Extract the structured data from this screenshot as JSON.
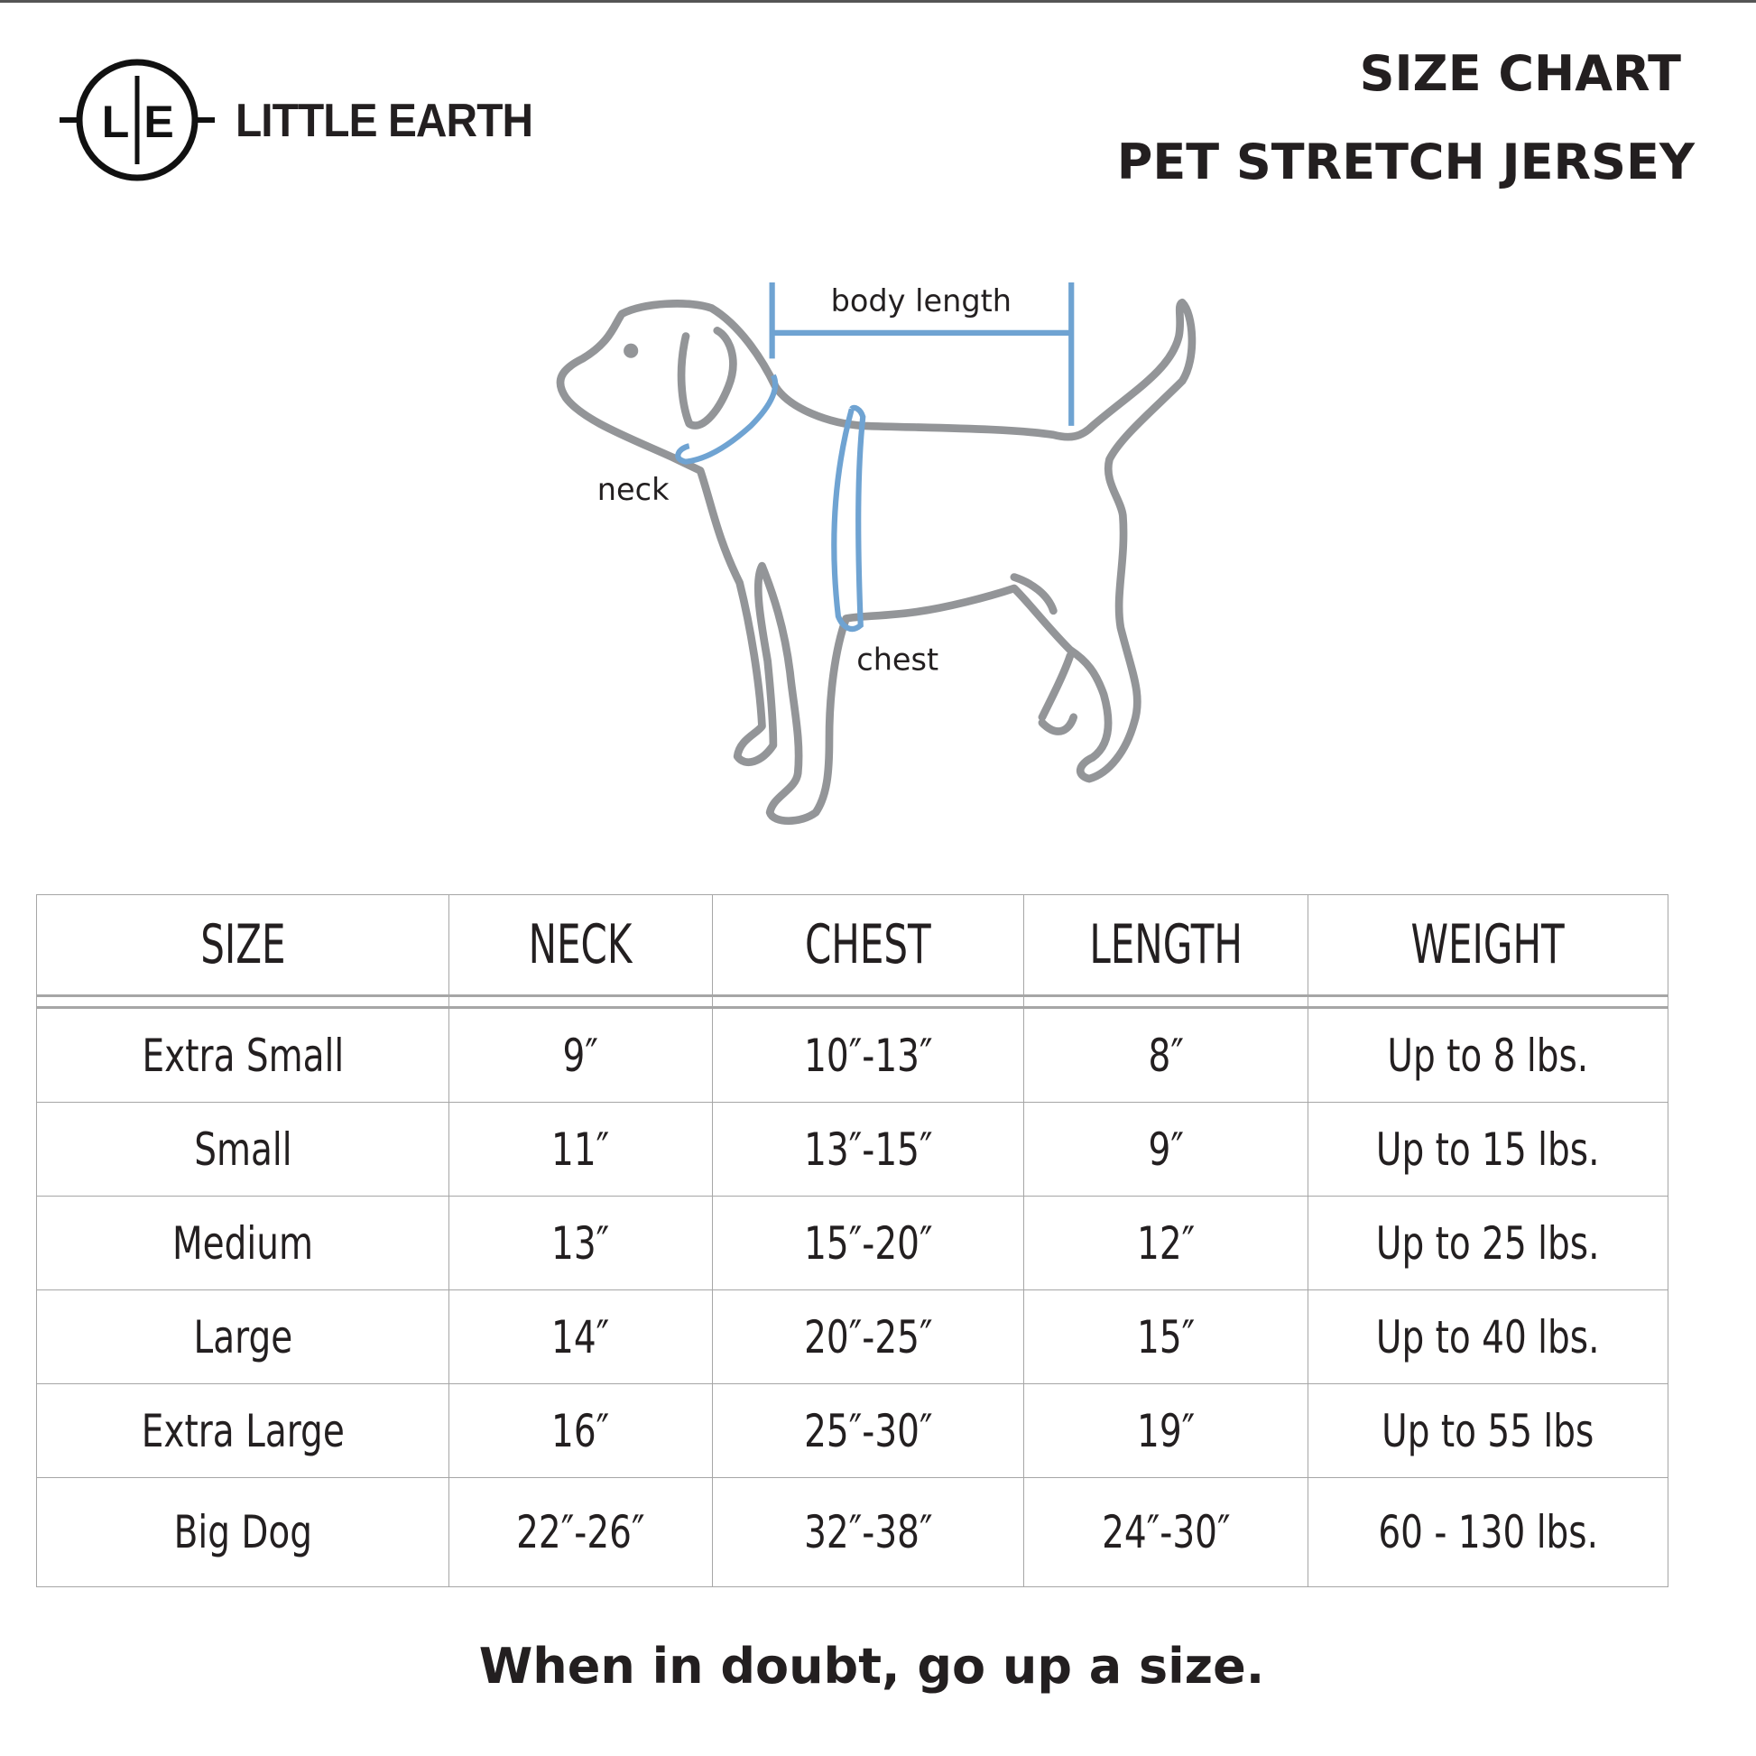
{
  "brand": {
    "name": "LITTLE EARTH",
    "monogram_left": "L",
    "monogram_right": "E"
  },
  "header": {
    "title": "SIZE CHART",
    "subtitle": "PET STRETCH JERSEY"
  },
  "diagram": {
    "labels": {
      "body_length": "body length",
      "neck": "neck",
      "chest": "chest"
    },
    "colors": {
      "outline": "#939598",
      "measure": "#6fa3d2"
    }
  },
  "table": {
    "columns": [
      "SIZE",
      "NECK",
      "CHEST",
      "LENGTH",
      "WEIGHT"
    ],
    "rows": [
      [
        "Extra Small",
        "9″",
        "10″-13″",
        "8″",
        "Up to 8 lbs."
      ],
      [
        "Small",
        "11″",
        "13″-15″",
        "9″",
        "Up to 15 lbs."
      ],
      [
        "Medium",
        "13″",
        "15″-20″",
        "12″",
        "Up to 25 lbs."
      ],
      [
        "Large",
        "14″",
        "20″-25″",
        "15″",
        "Up to 40 lbs."
      ],
      [
        "Extra Large",
        "16″",
        "25″-30″",
        "19″",
        "Up to 55 lbs"
      ],
      [
        "Big Dog",
        "22″-26″",
        "32″-38″",
        "24″-30″",
        "60 - 130 lbs."
      ]
    ]
  },
  "footer": {
    "note": "When in doubt, go up a size."
  }
}
